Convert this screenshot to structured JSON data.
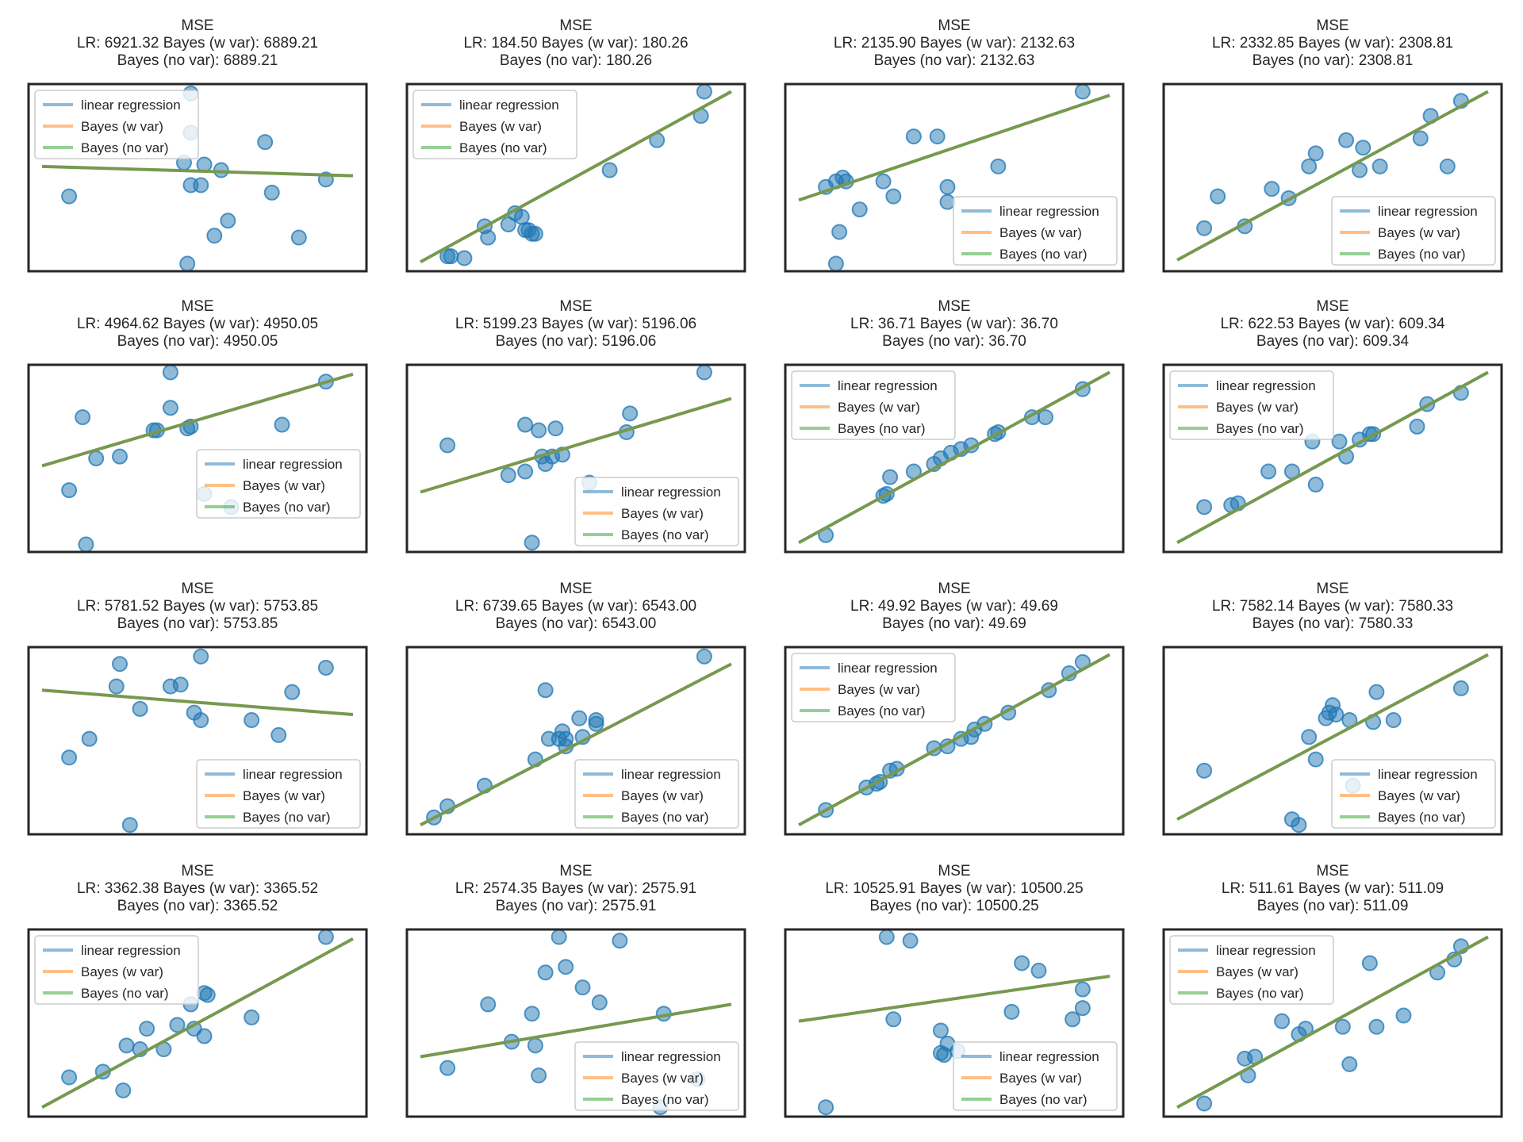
{
  "figure": {
    "layout": "4x4 grid of subplots",
    "colors": {
      "points": "#1f77b4",
      "linear_regression": "#1f77b4",
      "bayes_w_var": "#ff7f0e",
      "bayes_no_var": "#2ca02c",
      "fitted_line_overlay": "#77994f",
      "frame": "#262626",
      "background": "#ffffff"
    },
    "legend_labels": [
      "linear regression",
      "Bayes (w var)",
      "Bayes (no var)"
    ]
  },
  "chart_data": [
    {
      "type": "scatter",
      "title_lines": [
        "MSE",
        "LR: 6921.32 Bayes (w var): 6889.21",
        "Bayes (no var): 6889.21"
      ],
      "legend_location": "upper-left",
      "xlim": [
        0,
        100
      ],
      "ylim": [
        0,
        100
      ],
      "points": [
        [
          48,
          95
        ],
        [
          48,
          74
        ],
        [
          46,
          58
        ],
        [
          52,
          57
        ],
        [
          70,
          69
        ],
        [
          48,
          46
        ],
        [
          51,
          46
        ],
        [
          57,
          54
        ],
        [
          12,
          40
        ],
        [
          72,
          42
        ],
        [
          88,
          49
        ],
        [
          59,
          27
        ],
        [
          55,
          19
        ],
        [
          80,
          18
        ],
        [
          47,
          4
        ]
      ],
      "line": [
        [
          4,
          56
        ],
        [
          96,
          51
        ]
      ]
    },
    {
      "type": "scatter",
      "title_lines": [
        "MSE",
        "LR: 184.50 Bayes (w var): 180.26",
        "Bayes (no var): 180.26"
      ],
      "legend_location": "upper-left",
      "xlim": [
        0,
        100
      ],
      "ylim": [
        0,
        100
      ],
      "points": [
        [
          88,
          96
        ],
        [
          87,
          83
        ],
        [
          74,
          70
        ],
        [
          60,
          54
        ],
        [
          32,
          31
        ],
        [
          34,
          29
        ],
        [
          30,
          25
        ],
        [
          35,
          22
        ],
        [
          36,
          22
        ],
        [
          37,
          20
        ],
        [
          38,
          20
        ],
        [
          23,
          24
        ],
        [
          24,
          18
        ],
        [
          12,
          8
        ],
        [
          13,
          8
        ],
        [
          17,
          7
        ]
      ],
      "line": [
        [
          4,
          5
        ],
        [
          96,
          96
        ]
      ]
    },
    {
      "type": "scatter",
      "title_lines": [
        "MSE",
        "LR: 2135.90 Bayes (w var): 2132.63",
        "Bayes (no var): 2132.63"
      ],
      "legend_location": "lower-right",
      "xlim": [
        0,
        100
      ],
      "ylim": [
        0,
        100
      ],
      "points": [
        [
          88,
          96
        ],
        [
          38,
          72
        ],
        [
          45,
          72
        ],
        [
          15,
          48
        ],
        [
          17,
          50
        ],
        [
          18,
          48
        ],
        [
          12,
          45
        ],
        [
          29,
          48
        ],
        [
          32,
          40
        ],
        [
          48,
          45
        ],
        [
          63,
          56
        ],
        [
          22,
          33
        ],
        [
          48,
          37
        ],
        [
          16,
          21
        ],
        [
          15,
          4
        ]
      ],
      "line": [
        [
          4,
          38
        ],
        [
          96,
          94
        ]
      ]
    },
    {
      "type": "scatter",
      "title_lines": [
        "MSE",
        "LR: 2332.85 Bayes (w var): 2308.81",
        "Bayes (no var): 2308.81"
      ],
      "legend_location": "lower-right",
      "xlim": [
        0,
        100
      ],
      "ylim": [
        0,
        100
      ],
      "points": [
        [
          88,
          91
        ],
        [
          79,
          83
        ],
        [
          76,
          71
        ],
        [
          54,
          70
        ],
        [
          59,
          66
        ],
        [
          45,
          63
        ],
        [
          43,
          56
        ],
        [
          58,
          54
        ],
        [
          64,
          56
        ],
        [
          84,
          56
        ],
        [
          32,
          44
        ],
        [
          37,
          39
        ],
        [
          16,
          40
        ],
        [
          24,
          24
        ],
        [
          12,
          23
        ]
      ],
      "line": [
        [
          4,
          6
        ],
        [
          96,
          96
        ]
      ]
    },
    {
      "type": "scatter",
      "title_lines": [
        "MSE",
        "LR: 4964.62 Bayes (w var): 4950.05",
        "Bayes (no var): 4950.05"
      ],
      "legend_location": "center-right",
      "xlim": [
        0,
        100
      ],
      "ylim": [
        0,
        100
      ],
      "points": [
        [
          42,
          96
        ],
        [
          88,
          91
        ],
        [
          42,
          77
        ],
        [
          16,
          72
        ],
        [
          38,
          65
        ],
        [
          37,
          65
        ],
        [
          47,
          66
        ],
        [
          48,
          67
        ],
        [
          75,
          68
        ],
        [
          20,
          50
        ],
        [
          27,
          51
        ],
        [
          12,
          33
        ],
        [
          52,
          31
        ],
        [
          60,
          24
        ],
        [
          17,
          4
        ]
      ],
      "line": [
        [
          4,
          46
        ],
        [
          96,
          95
        ]
      ]
    },
    {
      "type": "scatter",
      "title_lines": [
        "MSE",
        "LR: 5199.23 Bayes (w var): 5196.06",
        "Bayes (no var): 5196.06"
      ],
      "legend_location": "lower-right",
      "xlim": [
        0,
        100
      ],
      "ylim": [
        0,
        100
      ],
      "points": [
        [
          88,
          96
        ],
        [
          66,
          74
        ],
        [
          65,
          64
        ],
        [
          35,
          68
        ],
        [
          39,
          65
        ],
        [
          44,
          66
        ],
        [
          40,
          51
        ],
        [
          43,
          51
        ],
        [
          46,
          52
        ],
        [
          12,
          57
        ],
        [
          41,
          47
        ],
        [
          30,
          41
        ],
        [
          35,
          43
        ],
        [
          54,
          37
        ],
        [
          37,
          5
        ]
      ],
      "line": [
        [
          4,
          32
        ],
        [
          96,
          82
        ]
      ]
    },
    {
      "type": "scatter",
      "title_lines": [
        "MSE",
        "LR: 36.71 Bayes (w var): 36.70",
        "Bayes (no var): 36.70"
      ],
      "legend_location": "upper-left",
      "xlim": [
        0,
        100
      ],
      "ylim": [
        0,
        100
      ],
      "points": [
        [
          88,
          87
        ],
        [
          73,
          72
        ],
        [
          77,
          72
        ],
        [
          63,
          64
        ],
        [
          62,
          63
        ],
        [
          55,
          57
        ],
        [
          52,
          55
        ],
        [
          49,
          53
        ],
        [
          46,
          50
        ],
        [
          44,
          47
        ],
        [
          38,
          43
        ],
        [
          31,
          40
        ],
        [
          30,
          31
        ],
        [
          29,
          30
        ],
        [
          12,
          9
        ]
      ],
      "line": [
        [
          4,
          5
        ],
        [
          96,
          96
        ]
      ]
    },
    {
      "type": "scatter",
      "title_lines": [
        "MSE",
        "LR: 622.53 Bayes (w var): 609.34",
        "Bayes (no var): 609.34"
      ],
      "legend_location": "upper-left",
      "xlim": [
        0,
        100
      ],
      "ylim": [
        0,
        100
      ],
      "points": [
        [
          88,
          85
        ],
        [
          78,
          79
        ],
        [
          75,
          67
        ],
        [
          62,
          63
        ],
        [
          61,
          63
        ],
        [
          52,
          59
        ],
        [
          58,
          60
        ],
        [
          44,
          59
        ],
        [
          54,
          51
        ],
        [
          38,
          43
        ],
        [
          31,
          43
        ],
        [
          45,
          36
        ],
        [
          22,
          26
        ],
        [
          12,
          24
        ],
        [
          20,
          25
        ]
      ],
      "line": [
        [
          4,
          5
        ],
        [
          96,
          96
        ]
      ]
    },
    {
      "type": "scatter",
      "title_lines": [
        "MSE",
        "LR: 5781.52 Bayes (w var): 5753.85",
        "Bayes (no var): 5753.85"
      ],
      "legend_location": "lower-right",
      "xlim": [
        0,
        100
      ],
      "ylim": [
        0,
        100
      ],
      "points": [
        [
          51,
          95
        ],
        [
          27,
          91
        ],
        [
          88,
          89
        ],
        [
          42,
          79
        ],
        [
          26,
          79
        ],
        [
          45,
          80
        ],
        [
          78,
          76
        ],
        [
          33,
          67
        ],
        [
          49,
          65
        ],
        [
          51,
          61
        ],
        [
          66,
          61
        ],
        [
          74,
          53
        ],
        [
          18,
          51
        ],
        [
          12,
          41
        ],
        [
          30,
          5
        ]
      ],
      "line": [
        [
          4,
          77
        ],
        [
          96,
          64
        ]
      ]
    },
    {
      "type": "scatter",
      "title_lines": [
        "MSE",
        "LR: 6739.65 Bayes (w var): 6543.00",
        "Bayes (no var): 6543.00"
      ],
      "legend_location": "lower-right",
      "xlim": [
        0,
        100
      ],
      "ylim": [
        0,
        100
      ],
      "points": [
        [
          88,
          95
        ],
        [
          41,
          77
        ],
        [
          51,
          62
        ],
        [
          56,
          61
        ],
        [
          45,
          51
        ],
        [
          47,
          51
        ],
        [
          52,
          52
        ],
        [
          56,
          59
        ],
        [
          42,
          51
        ],
        [
          46,
          55
        ],
        [
          47,
          47
        ],
        [
          38,
          40
        ],
        [
          23,
          26
        ],
        [
          12,
          15
        ],
        [
          8,
          9
        ]
      ],
      "line": [
        [
          4,
          5
        ],
        [
          96,
          91
        ]
      ]
    },
    {
      "type": "scatter",
      "title_lines": [
        "MSE",
        "LR: 49.92 Bayes (w var): 49.69",
        "Bayes (no var): 49.69"
      ],
      "legend_location": "upper-left",
      "xlim": [
        0,
        100
      ],
      "ylim": [
        0,
        100
      ],
      "points": [
        [
          88,
          92
        ],
        [
          84,
          86
        ],
        [
          78,
          77
        ],
        [
          66,
          65
        ],
        [
          59,
          59
        ],
        [
          56,
          56
        ],
        [
          55,
          52
        ],
        [
          52,
          51
        ],
        [
          48,
          47
        ],
        [
          44,
          46
        ],
        [
          31,
          34
        ],
        [
          33,
          35
        ],
        [
          28,
          28
        ],
        [
          27,
          27
        ],
        [
          24,
          25
        ],
        [
          12,
          13
        ]
      ],
      "line": [
        [
          4,
          5
        ],
        [
          96,
          96
        ]
      ]
    },
    {
      "type": "scatter",
      "title_lines": [
        "MSE",
        "LR: 7582.14 Bayes (w var): 7580.33",
        "Bayes (no var): 7580.33"
      ],
      "legend_location": "lower-right",
      "xlim": [
        0,
        100
      ],
      "ylim": [
        0,
        100
      ],
      "points": [
        [
          88,
          78
        ],
        [
          63,
          76
        ],
        [
          50,
          69
        ],
        [
          51,
          64
        ],
        [
          48,
          62
        ],
        [
          49,
          65
        ],
        [
          55,
          61
        ],
        [
          62,
          60
        ],
        [
          68,
          61
        ],
        [
          43,
          52
        ],
        [
          45,
          40
        ],
        [
          12,
          34
        ],
        [
          56,
          26
        ],
        [
          38,
          8
        ],
        [
          40,
          5
        ]
      ],
      "line": [
        [
          4,
          8
        ],
        [
          96,
          96
        ]
      ]
    },
    {
      "type": "scatter",
      "title_lines": [
        "MSE",
        "LR: 3362.38 Bayes (w var): 3365.52",
        "Bayes (no var): 3365.52"
      ],
      "legend_location": "upper-left",
      "xlim": [
        0,
        100
      ],
      "ylim": [
        0,
        100
      ],
      "points": [
        [
          88,
          96
        ],
        [
          52,
          66
        ],
        [
          53,
          65
        ],
        [
          48,
          60
        ],
        [
          35,
          47
        ],
        [
          66,
          53
        ],
        [
          49,
          47
        ],
        [
          44,
          49
        ],
        [
          40,
          36
        ],
        [
          29,
          38
        ],
        [
          33,
          36
        ],
        [
          22,
          24
        ],
        [
          12,
          21
        ],
        [
          28,
          14
        ],
        [
          52,
          43
        ]
      ],
      "line": [
        [
          4,
          5
        ],
        [
          96,
          95
        ]
      ]
    },
    {
      "type": "scatter",
      "title_lines": [
        "MSE",
        "LR: 2574.35 Bayes (w var): 2575.91",
        "Bayes (no var): 2575.91"
      ],
      "legend_location": "lower-right",
      "xlim": [
        0,
        100
      ],
      "ylim": [
        0,
        100
      ],
      "points": [
        [
          45,
          96
        ],
        [
          63,
          94
        ],
        [
          47,
          80
        ],
        [
          41,
          77
        ],
        [
          52,
          69
        ],
        [
          57,
          61
        ],
        [
          24,
          60
        ],
        [
          37,
          55
        ],
        [
          76,
          55
        ],
        [
          31,
          40
        ],
        [
          38,
          38
        ],
        [
          12,
          26
        ],
        [
          39,
          22
        ],
        [
          86,
          20
        ],
        [
          75,
          5
        ]
      ],
      "line": [
        [
          4,
          32
        ],
        [
          96,
          60
        ]
      ]
    },
    {
      "type": "scatter",
      "title_lines": [
        "MSE",
        "LR: 10525.91 Bayes (w var): 10500.25",
        "Bayes (no var): 10500.25"
      ],
      "legend_location": "lower-right",
      "xlim": [
        0,
        100
      ],
      "ylim": [
        0,
        100
      ],
      "points": [
        [
          30,
          96
        ],
        [
          37,
          94
        ],
        [
          70,
          82
        ],
        [
          75,
          78
        ],
        [
          88,
          68
        ],
        [
          67,
          56
        ],
        [
          88,
          58
        ],
        [
          32,
          52
        ],
        [
          85,
          52
        ],
        [
          46,
          46
        ],
        [
          48,
          39
        ],
        [
          46,
          34
        ],
        [
          47,
          33
        ],
        [
          51,
          35
        ],
        [
          12,
          5
        ]
      ],
      "line": [
        [
          4,
          51
        ],
        [
          96,
          75
        ]
      ]
    },
    {
      "type": "scatter",
      "title_lines": [
        "MSE",
        "LR: 511.61 Bayes (w var): 511.09",
        "Bayes (no var): 511.09"
      ],
      "legend_location": "upper-left",
      "xlim": [
        0,
        100
      ],
      "ylim": [
        0,
        100
      ],
      "points": [
        [
          88,
          91
        ],
        [
          86,
          84
        ],
        [
          81,
          77
        ],
        [
          61,
          82
        ],
        [
          35,
          51
        ],
        [
          42,
          47
        ],
        [
          40,
          44
        ],
        [
          53,
          48
        ],
        [
          63,
          48
        ],
        [
          71,
          54
        ],
        [
          27,
          32
        ],
        [
          24,
          31
        ],
        [
          25,
          22
        ],
        [
          55,
          28
        ],
        [
          12,
          7
        ]
      ],
      "line": [
        [
          4,
          5
        ],
        [
          96,
          96
        ]
      ]
    }
  ]
}
